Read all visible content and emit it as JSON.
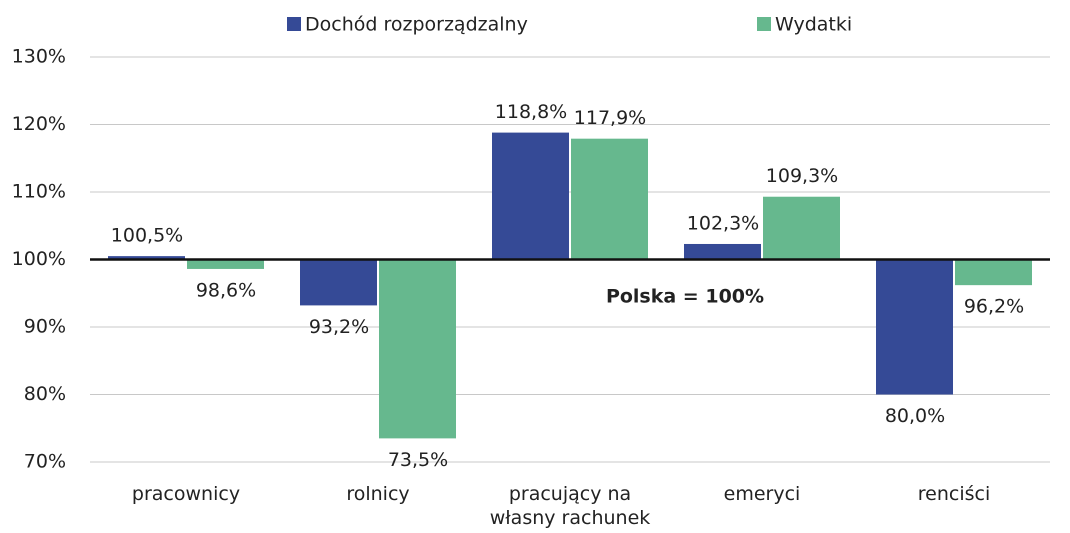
{
  "chart_data": {
    "type": "bar",
    "annotation": "Polska = 100%",
    "categories": [
      "pracownicy",
      "rolnicy",
      "pracujący na własny rachunek",
      "emeryci",
      "renciści"
    ],
    "series": [
      {
        "name": "Dochód rozporządzalny",
        "color": "#354a96",
        "values": [
          100.5,
          93.2,
          118.8,
          102.3,
          80.0
        ],
        "value_labels": [
          "100,5%",
          "93,2%",
          "118,8%",
          "102,3%",
          "80,0%"
        ]
      },
      {
        "name": "Wydatki",
        "color": "#66b88e",
        "values": [
          98.6,
          73.5,
          117.9,
          109.3,
          96.2
        ],
        "value_labels": [
          "98,6%",
          "73,5%",
          "117,9%",
          "109,3%",
          "96,2%"
        ]
      }
    ],
    "bar_base": 100,
    "ylim": [
      70,
      130
    ],
    "yticks": [
      {
        "value": 70,
        "label": "70%"
      },
      {
        "value": 80,
        "label": "80%"
      },
      {
        "value": 90,
        "label": "90%"
      },
      {
        "value": 100,
        "label": "100%"
      },
      {
        "value": 110,
        "label": "110%"
      },
      {
        "value": 120,
        "label": "120%"
      },
      {
        "value": 130,
        "label": "130%"
      }
    ],
    "grid": true,
    "legend": "top"
  }
}
